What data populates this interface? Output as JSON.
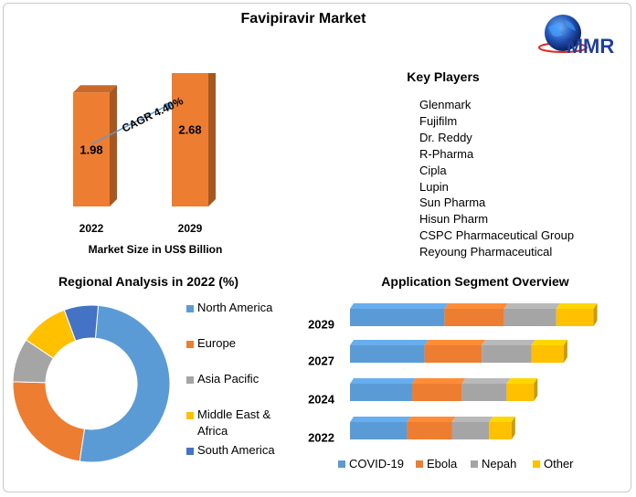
{
  "title": "Favipiravir Market",
  "logo": {
    "text": "MMR"
  },
  "key_players": {
    "title": "Key Players",
    "items": [
      "Glenmark",
      "Fujifilm",
      "Dr. Reddy",
      "R-Pharma",
      "Cipla",
      "Lupin",
      "Sun Pharma",
      "Hisun Pharm",
      "CSPC Pharmaceutical Group",
      "Reyoung Pharmaceutical"
    ]
  },
  "colors": {
    "orange": "#ED7D31",
    "blue": "#5B9BD5",
    "gray": "#A5A5A5",
    "yellow": "#FFC000",
    "darkblue": "#4472C4",
    "arrow": "#5B9BD5"
  },
  "chart_data": [
    {
      "type": "bar",
      "categories": [
        "2022",
        "2029"
      ],
      "values": [
        1.98,
        2.68
      ],
      "xlabel": "Market Size in US$ Billion",
      "annotation": "CAGR 4.40%"
    },
    {
      "type": "pie",
      "title": "Regional Analysis in 2022 (%)",
      "labels": [
        "North America",
        "Europe",
        "Asia Pacific",
        "Middle East & Africa",
        "South America"
      ],
      "values": [
        51,
        23,
        9,
        10,
        7
      ],
      "colors": [
        "#5B9BD5",
        "#ED7D31",
        "#A5A5A5",
        "#FFC000",
        "#4472C4"
      ],
      "legend": "right"
    },
    {
      "type": "bar",
      "orientation": "horizontal",
      "stacked": true,
      "title": "Application Segment Overview",
      "categories": [
        "2029",
        "2027",
        "2024",
        "2022"
      ],
      "series": [
        {
          "name": "COVID-19",
          "values": [
            38,
            30,
            25,
            23
          ]
        },
        {
          "name": "Ebola",
          "values": [
            24,
            23,
            20,
            18
          ]
        },
        {
          "name": "Nepah",
          "values": [
            21,
            20,
            18,
            15
          ]
        },
        {
          "name": "Other",
          "values": [
            15,
            13,
            11,
            9
          ]
        }
      ],
      "legend": "bottom"
    }
  ]
}
